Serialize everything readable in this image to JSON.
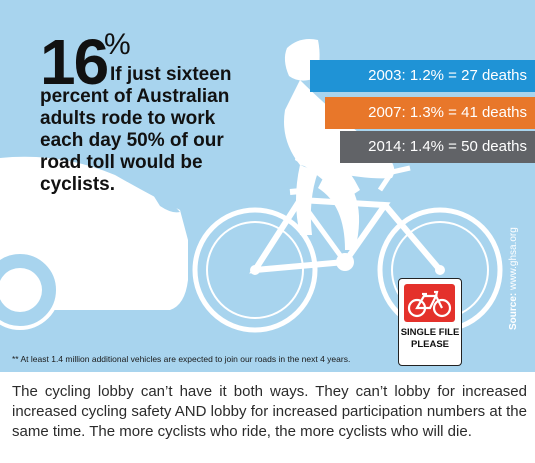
{
  "infographic": {
    "stat": {
      "number": "16",
      "unit": "%"
    },
    "headline": {
      "first_line": "If just sixteen",
      "rest": "percent of Australian adults rode to work each day 50% of our road toll would be cyclists."
    },
    "bands": [
      {
        "text": "2003:  1.2% = 27 deaths",
        "color": "#1f93d6"
      },
      {
        "text": "2007:  1.3% = 41 deaths",
        "color": "#e8772a"
      },
      {
        "text": "2014:  1.4% = 50 deaths",
        "color": "#616367"
      }
    ],
    "source": {
      "label": "Source:",
      "site": "www.ghsa.org"
    },
    "sign": {
      "line1": "SINGLE FILE",
      "line2": "PLEASE"
    },
    "footnote": "** At least 1.4 million additional vehicles are expected to join our roads in the next 4 years.",
    "colors": {
      "background": "#a8d4ee",
      "silhouette": "#ffffff",
      "sign_red": "#e4312b"
    }
  },
  "caption": "The cycling lobby can’t have it both ways.  They can’t lobby for increased increased cycling safety AND lobby for increased participation numbers at the same time.  The more cyclists who ride,  the more cyclists who will die."
}
